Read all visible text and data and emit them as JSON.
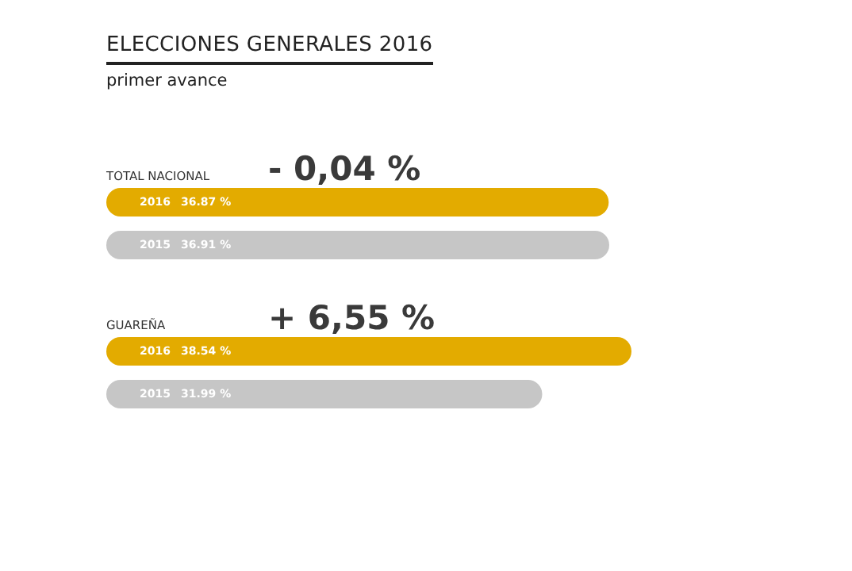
{
  "chart_data": {
    "type": "bar",
    "orientation": "horizontal",
    "title": "ELECCIONES GENERALES 2016",
    "subtitle": "primer avance",
    "categories": [
      "TOTAL NACIONAL",
      "GUAREÑA"
    ],
    "series": [
      {
        "name": "2016",
        "color": "#e3ab00",
        "values": [
          36.87,
          38.54
        ],
        "value_labels": [
          "36.87 %",
          "38.54 %"
        ]
      },
      {
        "name": "2015",
        "color": "#c6c6c6",
        "values": [
          36.91,
          31.99
        ],
        "value_labels": [
          "36.91 %",
          "31.99 %"
        ]
      }
    ],
    "annotations": [
      "- 0,04 %",
      "+ 6,55 %"
    ],
    "legend": false
  }
}
